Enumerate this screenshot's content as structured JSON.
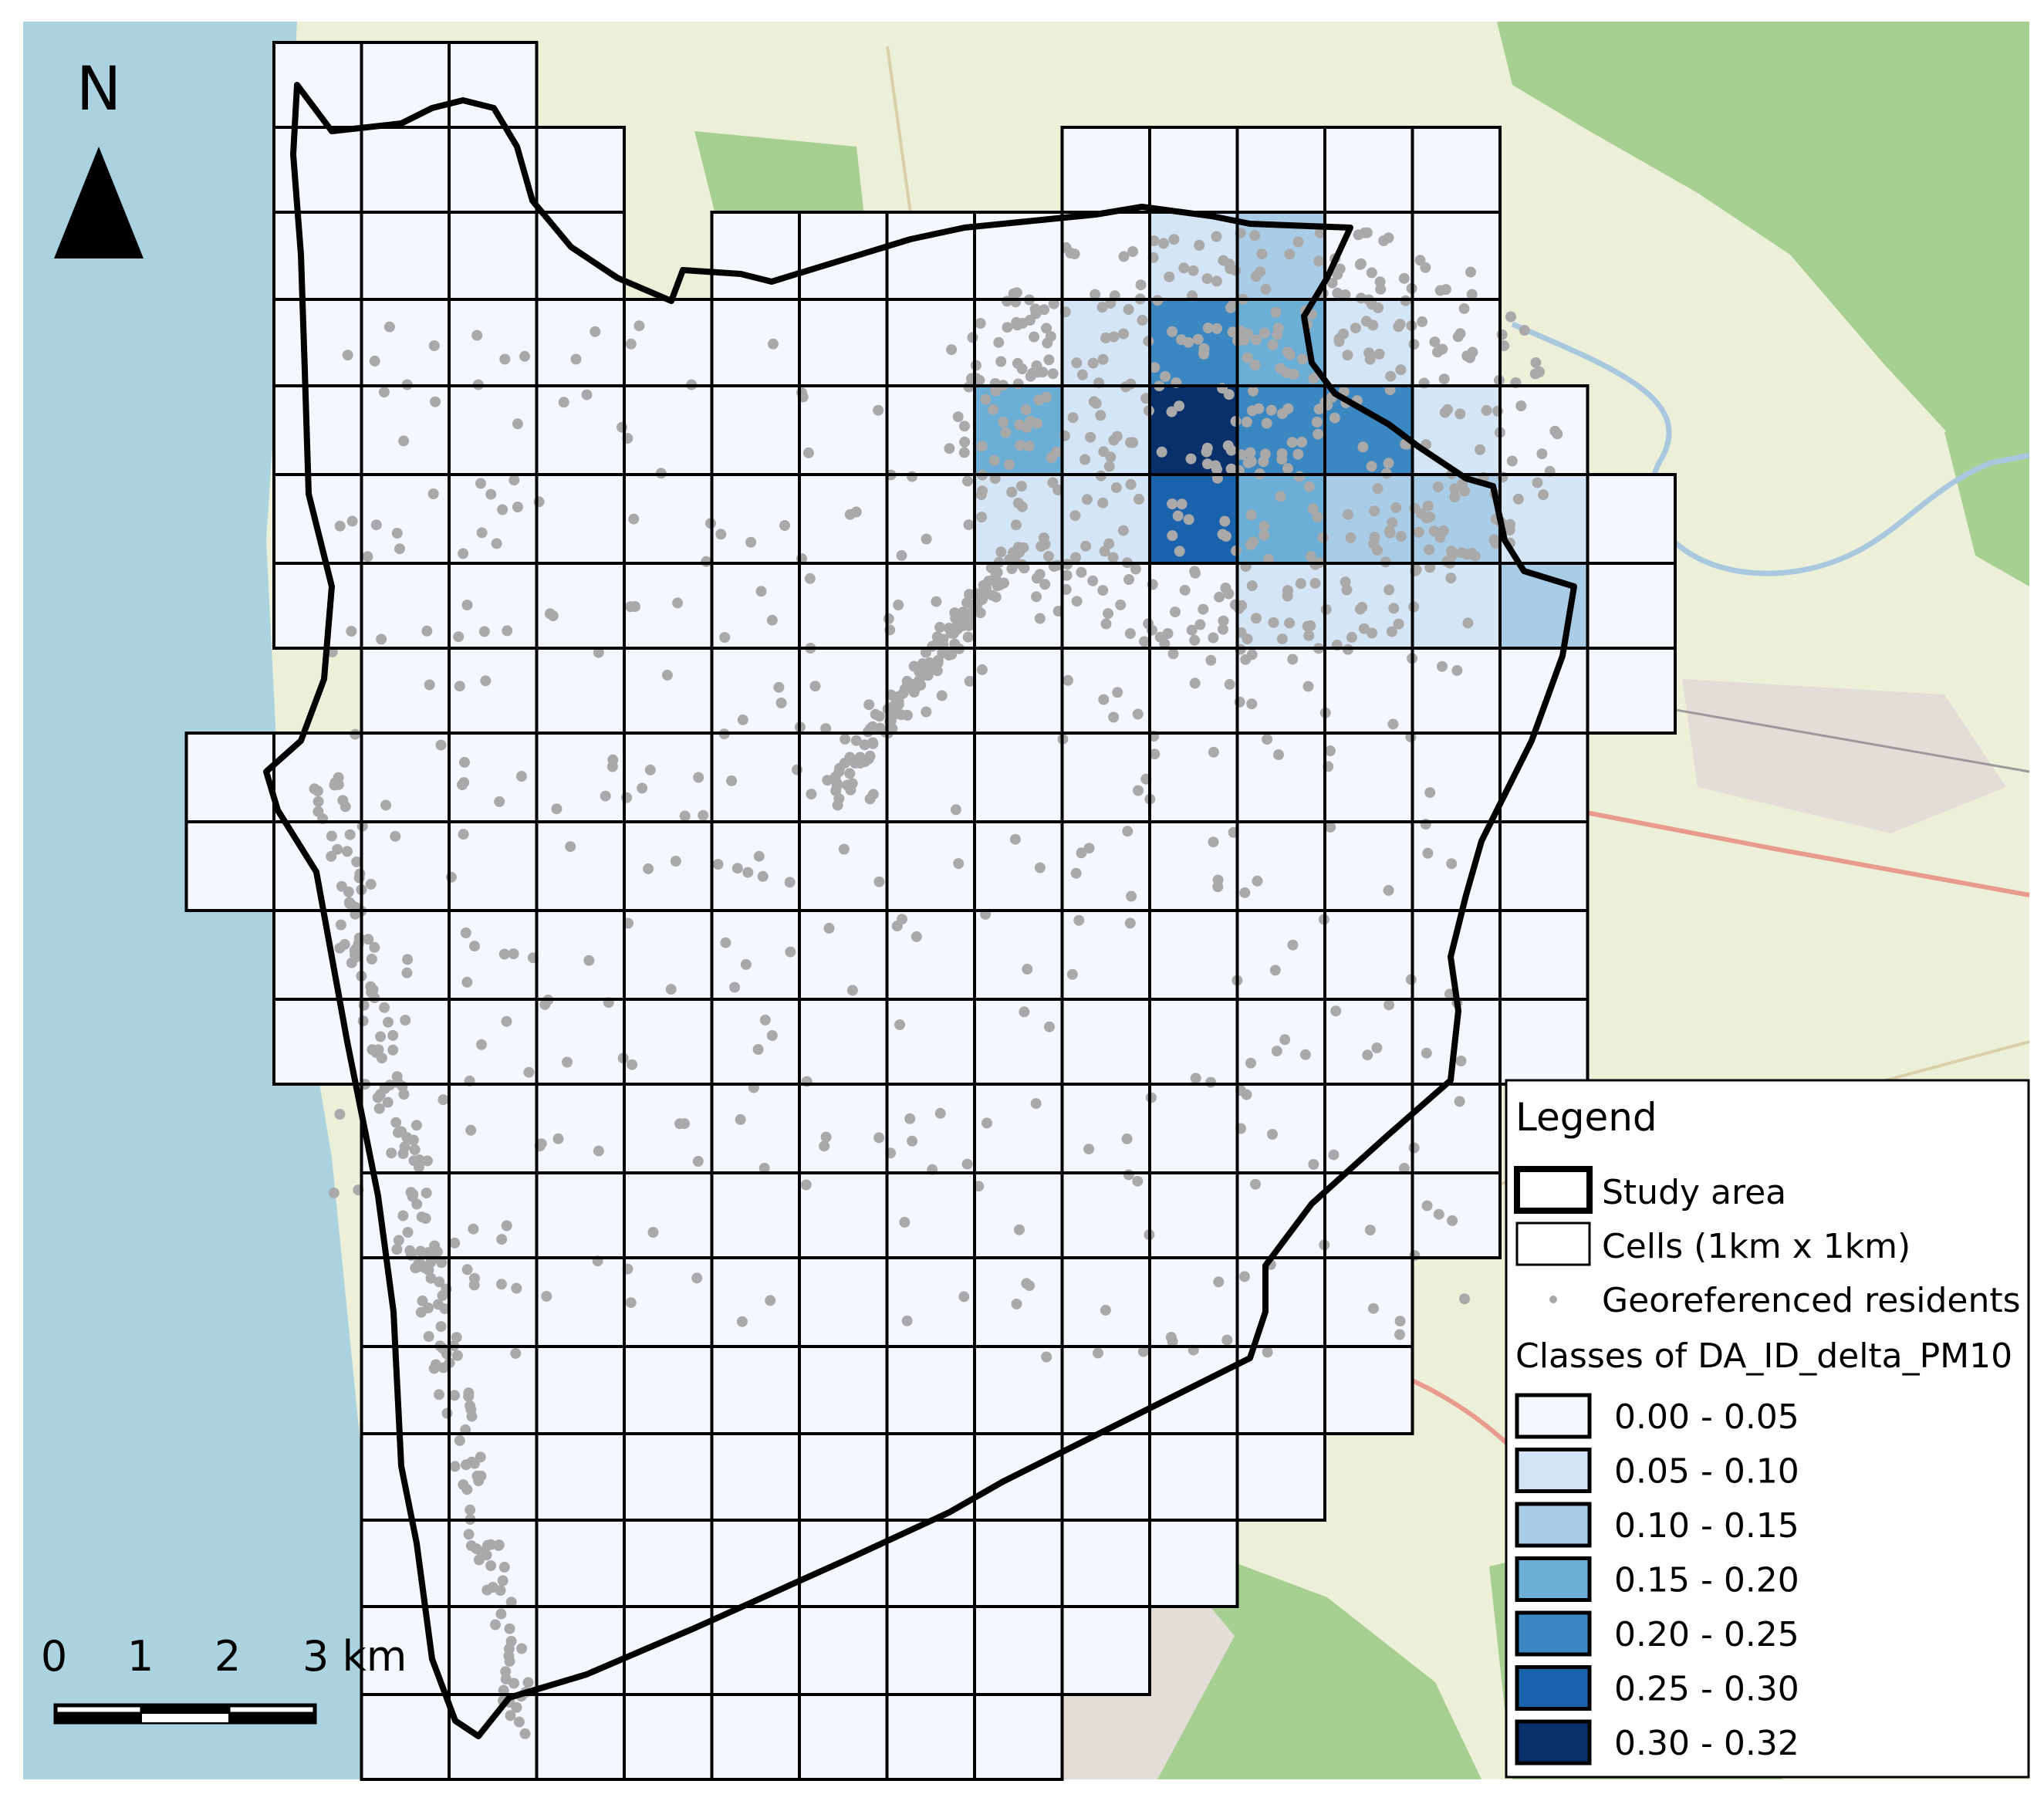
{
  "north_arrow": {
    "label": "N"
  },
  "scale_bar": {
    "labels": [
      "0",
      "1",
      "2",
      "3 km"
    ]
  },
  "legend": {
    "title": "Legend",
    "study_area_label": "Study area",
    "cells_label": "Cells (1km x 1km)",
    "residents_label": "Georeferenced residents",
    "classes_title": "Classes of DA_ID_delta_PM10",
    "classes": [
      {
        "label": "0.00 - 0.05",
        "color": "#f4f8fe"
      },
      {
        "label": "0.05 - 0.10",
        "color": "#d4e5f5"
      },
      {
        "label": "0.10 - 0.15",
        "color": "#a9cce7"
      },
      {
        "label": "0.15 - 0.20",
        "color": "#6baed6"
      },
      {
        "label": "0.20 - 0.25",
        "color": "#3a87c2"
      },
      {
        "label": "0.25 - 0.30",
        "color": "#1b62ad"
      },
      {
        "label": "0.30 - 0.32",
        "color": "#08306b"
      }
    ]
  },
  "colors": {
    "sea": "#aad3df",
    "land": "#eef0d8",
    "forest": "#8fc07c",
    "outline": "#000000",
    "residents": "#a9a9a9"
  }
}
